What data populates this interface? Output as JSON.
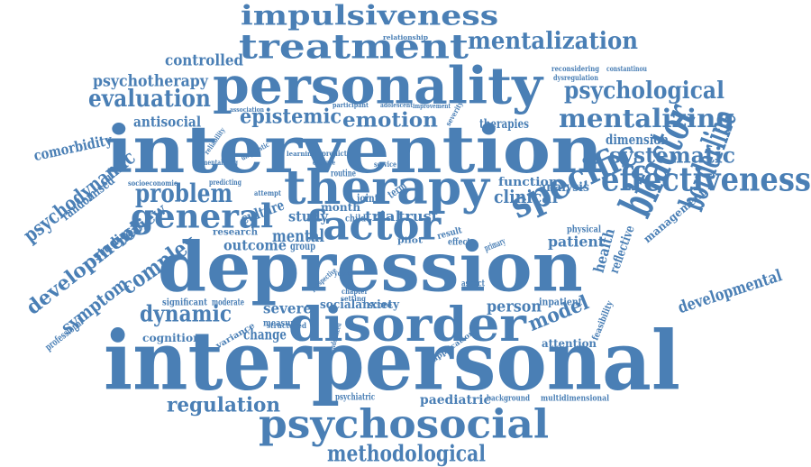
{
  "cloud": {
    "color": "#4a7fb5",
    "words": [
      {
        "text": "impulsiveness"
      },
      {
        "text": "treatment"
      },
      {
        "text": "mentalization"
      },
      {
        "text": "relationship"
      },
      {
        "text": "reconsidering"
      },
      {
        "text": "dysregulation"
      },
      {
        "text": "constantinou"
      },
      {
        "text": "controlled"
      },
      {
        "text": "personality"
      },
      {
        "text": "psychotherapy"
      },
      {
        "text": "psychological"
      },
      {
        "text": "evaluation"
      },
      {
        "text": "mentalizing"
      },
      {
        "text": "antisocial"
      },
      {
        "text": "epistemic"
      },
      {
        "text": "emotion"
      },
      {
        "text": "association"
      },
      {
        "text": "participant"
      },
      {
        "text": "adolescent"
      },
      {
        "text": "improvement"
      },
      {
        "text": "therapies"
      },
      {
        "text": "intervention"
      },
      {
        "text": "dimension"
      },
      {
        "text": "systematic"
      },
      {
        "text": "comorbidity"
      },
      {
        "text": "effectiveness"
      },
      {
        "text": "psychodynamic"
      },
      {
        "text": "randomised"
      },
      {
        "text": "problem"
      },
      {
        "text": "therapy"
      },
      {
        "text": "function"
      },
      {
        "text": "analysis"
      },
      {
        "text": "clinical"
      },
      {
        "text": "specific"
      },
      {
        "text": "general"
      },
      {
        "text": "bifactor"
      },
      {
        "text": "borderline"
      },
      {
        "text": "development"
      },
      {
        "text": "studies"
      },
      {
        "text": "review"
      },
      {
        "text": "culture"
      },
      {
        "text": "mentalizing"
      },
      {
        "text": "study"
      },
      {
        "text": "trial"
      },
      {
        "text": "trust"
      },
      {
        "text": "effect"
      },
      {
        "text": "factor"
      },
      {
        "text": "patient"
      },
      {
        "text": "management"
      },
      {
        "text": "symptom"
      },
      {
        "text": "complex"
      },
      {
        "text": "outcome"
      },
      {
        "text": "research"
      },
      {
        "text": "mental"
      },
      {
        "text": "group"
      },
      {
        "text": "health"
      },
      {
        "text": "reflective"
      },
      {
        "text": "developmental"
      },
      {
        "text": "depression"
      },
      {
        "text": "professional"
      },
      {
        "text": "dynamic"
      },
      {
        "text": "significant"
      },
      {
        "text": "moderate"
      },
      {
        "text": "severe"
      },
      {
        "text": "socialanxiety"
      },
      {
        "text": "person"
      },
      {
        "text": "inpatient"
      },
      {
        "text": "disorder"
      },
      {
        "text": "model"
      },
      {
        "text": "feasibility"
      },
      {
        "text": "cognition"
      },
      {
        "text": "change"
      },
      {
        "text": "measure"
      },
      {
        "text": "attention"
      },
      {
        "text": "interpersonal"
      },
      {
        "text": "regulation"
      },
      {
        "text": "psychiatric"
      },
      {
        "text": "paediatric"
      },
      {
        "text": "background"
      },
      {
        "text": "multidimensional"
      },
      {
        "text": "psychosocial"
      },
      {
        "text": "methodological"
      },
      {
        "text": "routine"
      },
      {
        "text": "service"
      },
      {
        "text": "pilot"
      },
      {
        "text": "score"
      },
      {
        "text": "setting"
      },
      {
        "text": "physical"
      },
      {
        "text": "attempt"
      },
      {
        "text": "reliability"
      },
      {
        "text": "predicting"
      },
      {
        "text": "socioeconomic"
      },
      {
        "text": "evidence"
      },
      {
        "text": "child"
      },
      {
        "text": "primary"
      },
      {
        "text": "structured"
      },
      {
        "text": "variance"
      },
      {
        "text": "prospective"
      },
      {
        "text": "randomized"
      },
      {
        "text": "application"
      },
      {
        "text": "aspect"
      },
      {
        "text": "young"
      },
      {
        "text": "chapter"
      },
      {
        "text": "result"
      },
      {
        "text": "joint"
      },
      {
        "text": "month"
      },
      {
        "text": "term"
      },
      {
        "text": "severity"
      },
      {
        "text": "predict"
      },
      {
        "text": "learning"
      },
      {
        "text": "diagnostic"
      }
    ]
  }
}
